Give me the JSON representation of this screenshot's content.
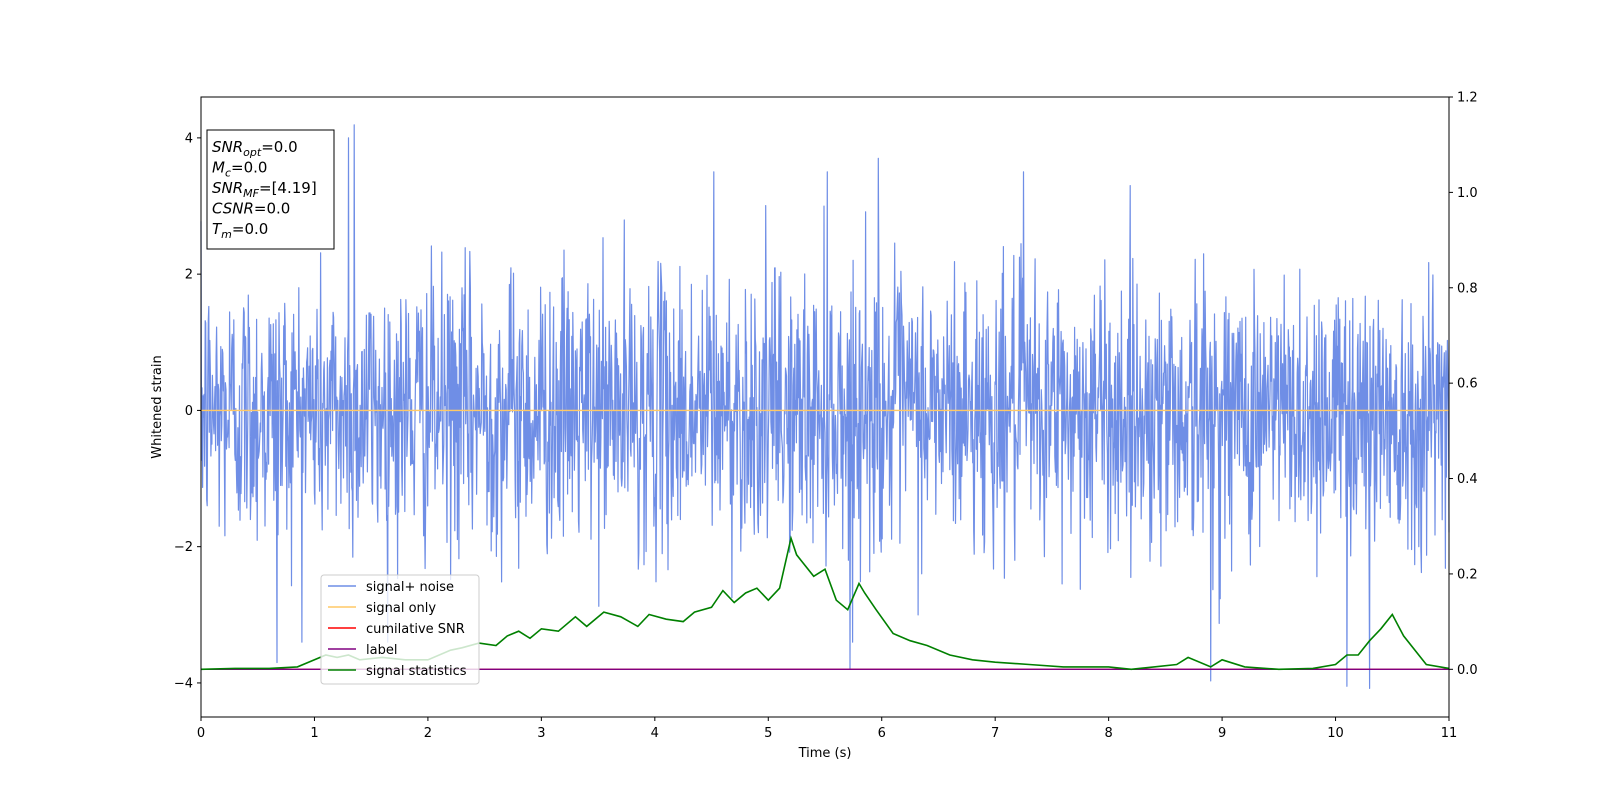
{
  "chart_data": {
    "type": "line",
    "xlabel": "Time (s)",
    "ylabel": "Whitened strain",
    "xlim": [
      0,
      11
    ],
    "ylim": [
      -4.5,
      4.6
    ],
    "y2lim": [
      -0.1,
      1.2
    ],
    "x_ticks": [
      0,
      1,
      2,
      3,
      4,
      5,
      6,
      7,
      8,
      9,
      10,
      11
    ],
    "x_tick_labels": [
      "0",
      "1",
      "2",
      "3",
      "4",
      "5",
      "6",
      "7",
      "8",
      "9",
      "10",
      "11"
    ],
    "y_ticks": [
      -4,
      -2,
      0,
      2,
      4
    ],
    "y_tick_labels": [
      "−4",
      "−2",
      "0",
      "2",
      "4"
    ],
    "y2_ticks": [
      0.0,
      0.2,
      0.4,
      0.6,
      0.8,
      1.0,
      1.2
    ],
    "y2_tick_labels": [
      "0.0",
      "0.2",
      "0.4",
      "0.6",
      "0.8",
      "1.0",
      "1.2"
    ],
    "grid": false,
    "legend_position": "lower-left",
    "colors": {
      "noise": "#6f8ee6",
      "signal": "#ffc966",
      "cumulative": "#ff0000",
      "label": "#800080",
      "statistics": "#008000"
    },
    "series": [
      {
        "name": "signal+ noise",
        "axis": "left",
        "kind": "noise",
        "x_range": [
          0,
          11
        ],
        "mean": 0,
        "std": 1.0,
        "spikes": [
          [
            1.35,
            4.19
          ],
          [
            1.3,
            4.0
          ],
          [
            5.97,
            3.7
          ],
          [
            4.52,
            3.5
          ],
          [
            7.25,
            3.5
          ],
          [
            5.52,
            3.5
          ],
          [
            0.67,
            -3.7
          ],
          [
            5.72,
            -3.8
          ],
          [
            10.1,
            -4.05
          ],
          [
            10.3,
            -4.08
          ],
          [
            8.9,
            -3.97
          ]
        ]
      },
      {
        "name": "signal only",
        "axis": "left",
        "x": [
          0,
          11
        ],
        "y": [
          0,
          0
        ]
      },
      {
        "name": "cumilative SNR",
        "axis": "right",
        "x": [
          0,
          11
        ],
        "y": [
          0,
          0
        ]
      },
      {
        "name": "label",
        "axis": "right",
        "x": [
          0,
          11
        ],
        "y": [
          0,
          0
        ]
      },
      {
        "name": "signal statistics",
        "axis": "right",
        "x": [
          0,
          0.3,
          0.6,
          0.85,
          1.0,
          1.1,
          1.2,
          1.3,
          1.4,
          1.6,
          1.8,
          2.0,
          2.2,
          2.3,
          2.45,
          2.6,
          2.7,
          2.8,
          2.9,
          3.0,
          3.15,
          3.3,
          3.4,
          3.55,
          3.7,
          3.85,
          3.95,
          4.1,
          4.25,
          4.35,
          4.5,
          4.6,
          4.7,
          4.8,
          4.9,
          5.0,
          5.1,
          5.2,
          5.25,
          5.3,
          5.4,
          5.5,
          5.6,
          5.7,
          5.8,
          5.85,
          5.95,
          6.1,
          6.25,
          6.4,
          6.6,
          6.8,
          7.0,
          7.3,
          7.6,
          8.0,
          8.2,
          8.4,
          8.6,
          8.7,
          8.9,
          9.0,
          9.2,
          9.5,
          9.8,
          10.0,
          10.1,
          10.2,
          10.3,
          10.4,
          10.5,
          10.6,
          10.8,
          11.0
        ],
        "y": [
          0.0,
          0.002,
          0.002,
          0.005,
          0.02,
          0.03,
          0.025,
          0.03,
          0.02,
          0.025,
          0.02,
          0.02,
          0.04,
          0.045,
          0.055,
          0.05,
          0.07,
          0.08,
          0.065,
          0.085,
          0.08,
          0.11,
          0.09,
          0.12,
          0.11,
          0.09,
          0.115,
          0.105,
          0.1,
          0.12,
          0.13,
          0.165,
          0.14,
          0.16,
          0.17,
          0.145,
          0.17,
          0.275,
          0.24,
          0.225,
          0.195,
          0.21,
          0.145,
          0.125,
          0.18,
          0.16,
          0.125,
          0.075,
          0.06,
          0.05,
          0.03,
          0.02,
          0.015,
          0.01,
          0.005,
          0.005,
          0.0,
          0.005,
          0.01,
          0.025,
          0.005,
          0.02,
          0.005,
          0.0,
          0.002,
          0.01,
          0.03,
          0.03,
          0.06,
          0.085,
          0.115,
          0.07,
          0.01,
          0.002
        ]
      }
    ],
    "info_box": [
      {
        "main": "SNR",
        "sub": "opt",
        "value": "=0.0"
      },
      {
        "main": "M",
        "sub": "c",
        "value": "=0.0"
      },
      {
        "main": "SNR",
        "sub": "MF",
        "value": "=[4.19]"
      },
      {
        "main": "CSNR",
        "sub": "",
        "value": "=0.0"
      },
      {
        "main": "T",
        "sub": "m",
        "value": "=0.0"
      }
    ]
  }
}
